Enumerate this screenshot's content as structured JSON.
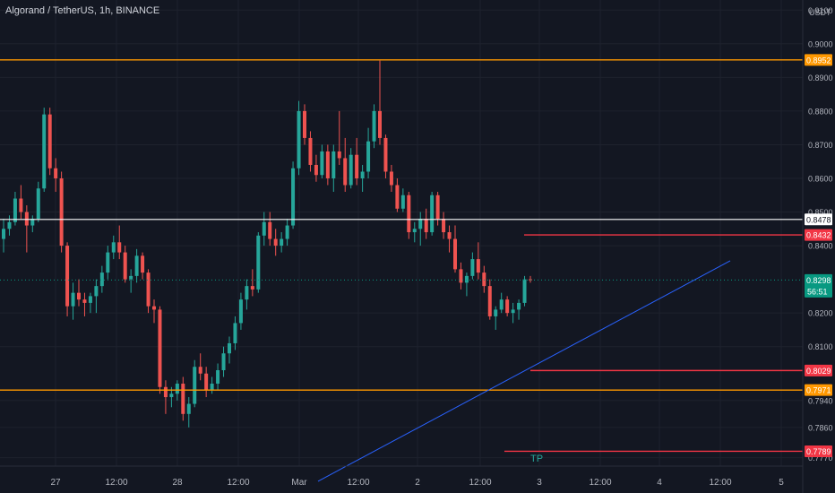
{
  "header": {
    "title": "Algorand / TetherUS, 1h, BINANCE"
  },
  "currency_label": "USDT",
  "price_scale": {
    "ticks": [
      "0.9100",
      "0.9000",
      "0.8900",
      "0.8800",
      "0.8700",
      "0.8600",
      "0.8500",
      "0.8400",
      "0.8200",
      "0.8100",
      "0.7940",
      "0.7860",
      "0.7770"
    ]
  },
  "price_badges": [
    {
      "label": "0.8952",
      "color": "#ff9800"
    },
    {
      "label": "0.8478",
      "color": "#ffffff"
    },
    {
      "label": "0.8432",
      "color": "#f23645"
    },
    {
      "label": "0.8298",
      "color": "#089981",
      "countdown": "56:51"
    },
    {
      "label": "0.8029",
      "color": "#f23645"
    },
    {
      "label": "0.7971",
      "color": "#ff9800"
    },
    {
      "label": "0.7789",
      "color": "#f23645"
    }
  ],
  "time_axis": {
    "labels": [
      "27",
      "12:00",
      "28",
      "12:00",
      "Mar",
      "12:00",
      "2",
      "12:00",
      "3",
      "12:00",
      "4",
      "12:00",
      "5"
    ]
  },
  "annotations": {
    "tp": "TP"
  },
  "colors": {
    "up": "#26a69a",
    "down": "#ef5350",
    "grid": "#1e222d",
    "text": "#b2b5be"
  },
  "chart_data": {
    "type": "candlestick",
    "title": "Algorand / TetherUS, 1h, BINANCE",
    "ylim": [
      0.7745,
      0.913
    ],
    "horizontal_levels": [
      {
        "price": 0.8952,
        "color": "#ff9800",
        "label": "0.8952"
      },
      {
        "price": 0.8478,
        "color": "#ffffff",
        "label": "0.8478"
      },
      {
        "price": 0.8432,
        "color": "#f23645",
        "label": "0.8432"
      },
      {
        "price": 0.8029,
        "color": "#f23645",
        "label": "0.8029"
      },
      {
        "price": 0.7971,
        "color": "#ff9800",
        "label": "0.7971"
      },
      {
        "price": 0.7789,
        "color": "#f23645",
        "label": "0.7789"
      }
    ],
    "current_price": 0.8298,
    "trendline": {
      "from_price": 0.77,
      "to_price": 0.8355,
      "color": "#2962ff"
    },
    "ohlc": [
      [
        0.842,
        0.848,
        0.838,
        0.845
      ],
      [
        0.845,
        0.849,
        0.843,
        0.847
      ],
      [
        0.847,
        0.856,
        0.846,
        0.854
      ],
      [
        0.854,
        0.858,
        0.848,
        0.85
      ],
      [
        0.85,
        0.852,
        0.838,
        0.846
      ],
      [
        0.846,
        0.849,
        0.844,
        0.848
      ],
      [
        0.848,
        0.859,
        0.847,
        0.857
      ],
      [
        0.857,
        0.881,
        0.856,
        0.879
      ],
      [
        0.879,
        0.881,
        0.861,
        0.863
      ],
      [
        0.863,
        0.866,
        0.856,
        0.86
      ],
      [
        0.86,
        0.862,
        0.838,
        0.84
      ],
      [
        0.84,
        0.841,
        0.819,
        0.822
      ],
      [
        0.822,
        0.829,
        0.818,
        0.826
      ],
      [
        0.826,
        0.83,
        0.822,
        0.824
      ],
      [
        0.824,
        0.826,
        0.819,
        0.823
      ],
      [
        0.823,
        0.826,
        0.82,
        0.825
      ],
      [
        0.825,
        0.83,
        0.82,
        0.828
      ],
      [
        0.828,
        0.834,
        0.826,
        0.832
      ],
      [
        0.832,
        0.84,
        0.83,
        0.838
      ],
      [
        0.838,
        0.843,
        0.836,
        0.841
      ],
      [
        0.841,
        0.846,
        0.836,
        0.838
      ],
      [
        0.838,
        0.84,
        0.829,
        0.83
      ],
      [
        0.83,
        0.833,
        0.826,
        0.831
      ],
      [
        0.831,
        0.839,
        0.829,
        0.837
      ],
      [
        0.837,
        0.838,
        0.83,
        0.832
      ],
      [
        0.832,
        0.833,
        0.82,
        0.822
      ],
      [
        0.822,
        0.824,
        0.817,
        0.821
      ],
      [
        0.821,
        0.822,
        0.796,
        0.798
      ],
      [
        0.798,
        0.8,
        0.79,
        0.795
      ],
      [
        0.795,
        0.798,
        0.792,
        0.796
      ],
      [
        0.796,
        0.8,
        0.794,
        0.799
      ],
      [
        0.799,
        0.801,
        0.788,
        0.79
      ],
      [
        0.79,
        0.795,
        0.786,
        0.793
      ],
      [
        0.793,
        0.806,
        0.792,
        0.804
      ],
      [
        0.804,
        0.808,
        0.8,
        0.802
      ],
      [
        0.802,
        0.804,
        0.795,
        0.797
      ],
      [
        0.797,
        0.801,
        0.796,
        0.799
      ],
      [
        0.799,
        0.805,
        0.797,
        0.803
      ],
      [
        0.803,
        0.81,
        0.801,
        0.808
      ],
      [
        0.808,
        0.813,
        0.805,
        0.811
      ],
      [
        0.811,
        0.819,
        0.809,
        0.817
      ],
      [
        0.817,
        0.826,
        0.815,
        0.824
      ],
      [
        0.824,
        0.83,
        0.821,
        0.828
      ],
      [
        0.828,
        0.833,
        0.825,
        0.827
      ],
      [
        0.827,
        0.844,
        0.826,
        0.843
      ],
      [
        0.843,
        0.85,
        0.84,
        0.847
      ],
      [
        0.847,
        0.85,
        0.84,
        0.842
      ],
      [
        0.842,
        0.845,
        0.837,
        0.84
      ],
      [
        0.84,
        0.844,
        0.838,
        0.842
      ],
      [
        0.842,
        0.848,
        0.84,
        0.846
      ],
      [
        0.846,
        0.865,
        0.845,
        0.863
      ],
      [
        0.863,
        0.883,
        0.861,
        0.88
      ],
      [
        0.88,
        0.882,
        0.87,
        0.872
      ],
      [
        0.872,
        0.874,
        0.862,
        0.864
      ],
      [
        0.864,
        0.867,
        0.859,
        0.861
      ],
      [
        0.861,
        0.87,
        0.86,
        0.868
      ],
      [
        0.868,
        0.87,
        0.858,
        0.86
      ],
      [
        0.86,
        0.87,
        0.856,
        0.868
      ],
      [
        0.868,
        0.88,
        0.864,
        0.866
      ],
      [
        0.866,
        0.872,
        0.856,
        0.858
      ],
      [
        0.858,
        0.869,
        0.857,
        0.867
      ],
      [
        0.867,
        0.872,
        0.858,
        0.86
      ],
      [
        0.86,
        0.864,
        0.856,
        0.862
      ],
      [
        0.862,
        0.875,
        0.86,
        0.871
      ],
      [
        0.871,
        0.882,
        0.869,
        0.88
      ],
      [
        0.88,
        0.895,
        0.87,
        0.872
      ],
      [
        0.872,
        0.873,
        0.86,
        0.862
      ],
      [
        0.862,
        0.864,
        0.856,
        0.858
      ],
      [
        0.858,
        0.86,
        0.85,
        0.851
      ],
      [
        0.851,
        0.857,
        0.85,
        0.855
      ],
      [
        0.855,
        0.856,
        0.842,
        0.844
      ],
      [
        0.844,
        0.847,
        0.841,
        0.845
      ],
      [
        0.845,
        0.85,
        0.84,
        0.848
      ],
      [
        0.848,
        0.851,
        0.842,
        0.844
      ],
      [
        0.844,
        0.856,
        0.843,
        0.855
      ],
      [
        0.855,
        0.856,
        0.846,
        0.848
      ],
      [
        0.848,
        0.85,
        0.842,
        0.844
      ],
      [
        0.844,
        0.846,
        0.838,
        0.842
      ],
      [
        0.842,
        0.846,
        0.832,
        0.833
      ],
      [
        0.833,
        0.835,
        0.827,
        0.829
      ],
      [
        0.829,
        0.832,
        0.825,
        0.831
      ],
      [
        0.831,
        0.838,
        0.83,
        0.836
      ],
      [
        0.836,
        0.841,
        0.83,
        0.832
      ],
      [
        0.832,
        0.834,
        0.826,
        0.828
      ],
      [
        0.828,
        0.83,
        0.818,
        0.819
      ],
      [
        0.819,
        0.822,
        0.815,
        0.821
      ],
      [
        0.821,
        0.826,
        0.82,
        0.824
      ],
      [
        0.824,
        0.825,
        0.819,
        0.82
      ],
      [
        0.82,
        0.823,
        0.817,
        0.821
      ],
      [
        0.821,
        0.824,
        0.818,
        0.823
      ],
      [
        0.823,
        0.831,
        0.822,
        0.83
      ],
      [
        0.83,
        0.831,
        0.829,
        0.8298
      ]
    ]
  }
}
